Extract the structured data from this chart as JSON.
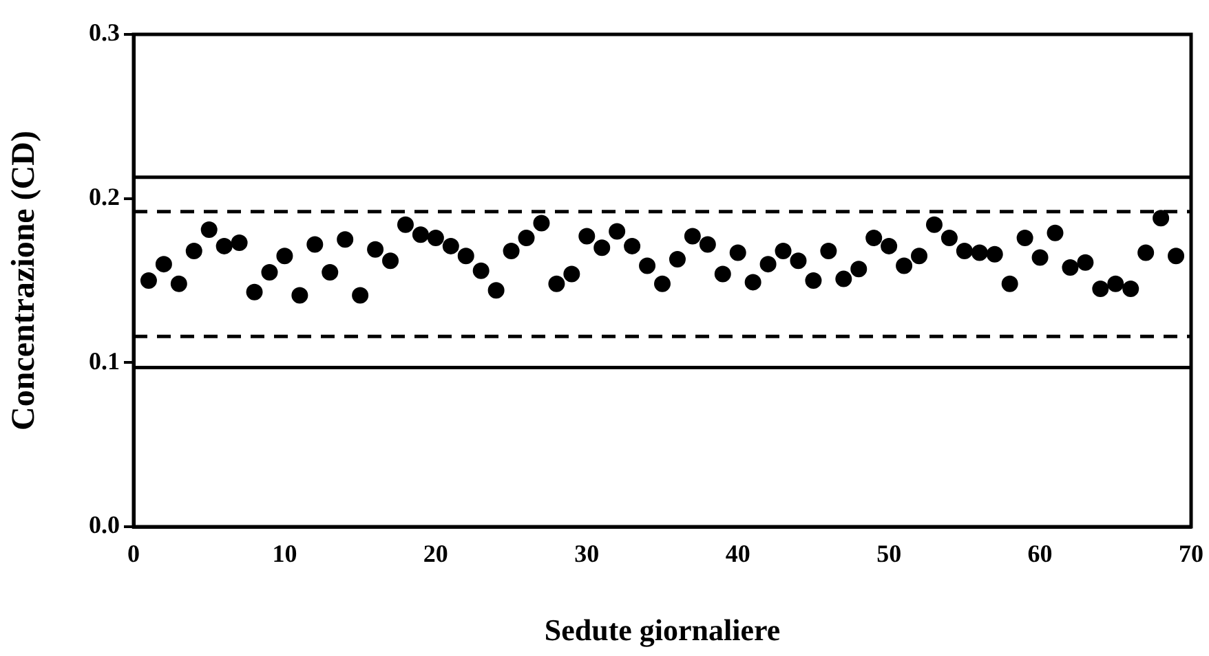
{
  "chart_data": {
    "type": "scatter",
    "xlabel": "Sedute giornaliere",
    "ylabel": "Concentrazione (CD)",
    "x": [
      1,
      2,
      3,
      4,
      5,
      6,
      7,
      8,
      9,
      10,
      11,
      12,
      13,
      14,
      15,
      16,
      17,
      18,
      19,
      20,
      21,
      22,
      23,
      24,
      25,
      26,
      27,
      28,
      29,
      30,
      31,
      32,
      33,
      34,
      35,
      36,
      37,
      38,
      39,
      40,
      41,
      42,
      43,
      44,
      45,
      46,
      47,
      48,
      49,
      50,
      51,
      52,
      53,
      54,
      55,
      56,
      57,
      58,
      59,
      60,
      61,
      62,
      63,
      64,
      65,
      66,
      67,
      68,
      69
    ],
    "series": [
      {
        "color": "#000000",
        "values": [
          0.15,
          0.16,
          0.148,
          0.168,
          0.181,
          0.171,
          0.173,
          0.143,
          0.155,
          0.165,
          0.141,
          0.172,
          0.155,
          0.175,
          0.141,
          0.169,
          0.162,
          0.184,
          0.178,
          0.176,
          0.171,
          0.165,
          0.156,
          0.144,
          0.168,
          0.176,
          0.185,
          0.148,
          0.154,
          0.177,
          0.17,
          0.18,
          0.171,
          0.159,
          0.148,
          0.163,
          0.177,
          0.172,
          0.154,
          0.167,
          0.149,
          0.16,
          0.168,
          0.162,
          0.15,
          0.168,
          0.151,
          0.157,
          0.176,
          0.171,
          0.159,
          0.165,
          0.184,
          0.176,
          0.168,
          0.167,
          0.166,
          0.148,
          0.176,
          0.164,
          0.179,
          0.158,
          0.161,
          0.145,
          0.148,
          0.145,
          0.167,
          0.188,
          0.165
        ]
      }
    ],
    "marker": "circle",
    "xlim": [
      0,
      70
    ],
    "xticks": [
      0,
      10,
      20,
      30,
      40,
      50,
      60,
      70
    ],
    "ylim": [
      0,
      0.3
    ],
    "yticks": [
      {
        "value": 0,
        "label": "0.0"
      },
      0.1,
      0.2,
      0.3
    ],
    "ref_lines": [
      {
        "axis": "y",
        "value": 0.213,
        "color": "#000000",
        "line_style": "solid"
      },
      {
        "axis": "y",
        "value": 0.192,
        "color": "#000000",
        "line_style": "dashed"
      },
      {
        "axis": "y",
        "value": 0.116,
        "color": "#000000",
        "line_style": "dashed"
      },
      {
        "axis": "y",
        "value": 0.097,
        "color": "#000000",
        "line_style": "solid"
      }
    ],
    "grid": false,
    "legend": false
  }
}
